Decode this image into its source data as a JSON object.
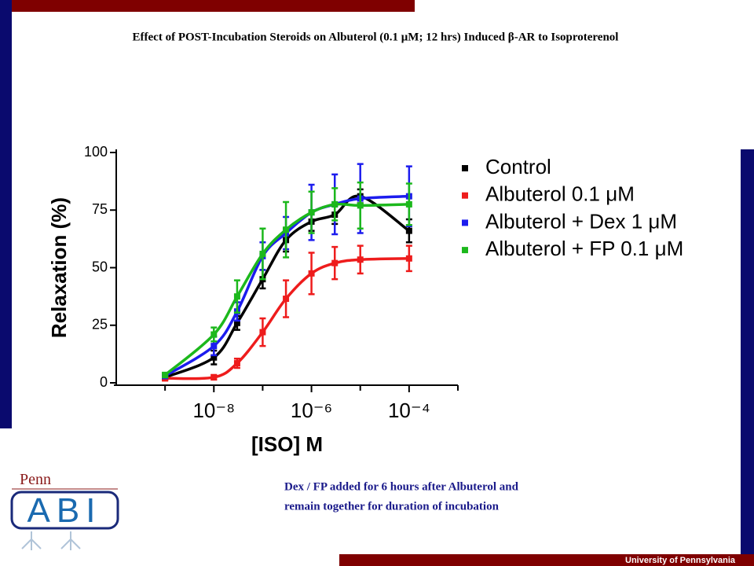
{
  "chart_data": {
    "type": "line",
    "title": "Effect of POST-Incubation Steroids on Albuterol (0.1 μM; 12 hrs) Induced β-AR to Isoproterenol",
    "x_label": "[ISO] M",
    "y_label": "Relaxation (%)",
    "x": [
      1e-09,
      1e-08,
      3e-08,
      1e-07,
      3e-07,
      1e-06,
      3e-06,
      1e-05,
      0.0001
    ],
    "xlim": [
      1e-10,
      0.001
    ],
    "log_x": true,
    "xticks": [
      {
        "value": 1e-08,
        "label": "10⁻⁸"
      },
      {
        "value": 1e-06,
        "label": "10⁻⁶"
      },
      {
        "value": 0.0001,
        "label": "10⁻⁴"
      }
    ],
    "xminor_ticks": [
      1e-09,
      1e-07,
      1e-05,
      0.001
    ],
    "ylim": [
      0,
      100
    ],
    "yticks": [
      0,
      25,
      50,
      75,
      100
    ],
    "legend": "top-right",
    "series": [
      {
        "name": "Control",
        "color": "#000000",
        "values": [
          2.4,
          11,
          26,
          45,
          62,
          70,
          73,
          81,
          66
        ],
        "errors": [
          1,
          3,
          3,
          4,
          5,
          4,
          4,
          3,
          5
        ]
      },
      {
        "name": "Albuterol 0.1 μM",
        "color": "#ee1c1c",
        "values": [
          2,
          2.4,
          8.5,
          22,
          36.5,
          47.5,
          52,
          53.5,
          54
        ],
        "errors": [
          1,
          1,
          2,
          6,
          8,
          9,
          7,
          6,
          5.5
        ]
      },
      {
        "name": "Albuterol + Dex 1 μM",
        "color": "#1c1cee",
        "values": [
          3,
          16,
          31,
          55,
          65,
          74,
          77.5,
          80,
          81
        ],
        "errors": [
          1,
          4,
          4,
          6,
          7,
          12,
          13,
          15,
          13
        ]
      },
      {
        "name": "Albuterol + FP 0.1 μM",
        "color": "#1cb81c",
        "values": [
          3.4,
          21,
          37.5,
          56,
          66.5,
          74,
          77.5,
          77,
          77.5
        ],
        "errors": [
          1,
          3,
          7,
          11,
          12,
          9,
          7,
          10,
          9
        ]
      }
    ]
  },
  "slide": {
    "note": [
      "Dex / FP added for 6 hours after Albuterol and",
      "remain together for duration of incubation"
    ],
    "logo": [
      "Penn",
      "ABI"
    ],
    "footer": "University of Pennsylvania"
  }
}
